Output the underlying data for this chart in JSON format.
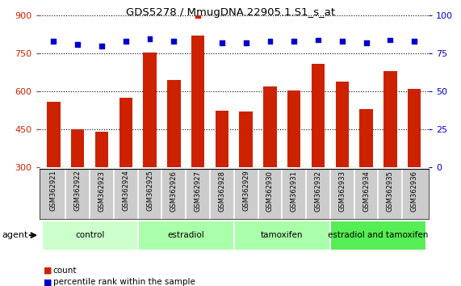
{
  "title": "GDS5278 / MmugDNA.22905.1.S1_s_at",
  "samples": [
    "GSM362921",
    "GSM362922",
    "GSM362923",
    "GSM362924",
    "GSM362925",
    "GSM362926",
    "GSM362927",
    "GSM362928",
    "GSM362929",
    "GSM362930",
    "GSM362931",
    "GSM362932",
    "GSM362933",
    "GSM362934",
    "GSM362935",
    "GSM362936"
  ],
  "counts": [
    560,
    450,
    440,
    575,
    755,
    645,
    820,
    525,
    520,
    620,
    605,
    710,
    640,
    530,
    680,
    610
  ],
  "percentiles": [
    83,
    81,
    80,
    83,
    85,
    83,
    100,
    82,
    82,
    83,
    83,
    84,
    83,
    82,
    84,
    83
  ],
  "bar_color": "#cc2200",
  "dot_color": "#0000cc",
  "dot_color_red": "#cc2200",
  "ylim_left": [
    300,
    900
  ],
  "ylim_right": [
    0,
    100
  ],
  "yticks_left": [
    300,
    450,
    600,
    750,
    900
  ],
  "yticks_right": [
    0,
    25,
    50,
    75,
    100
  ],
  "groups": [
    {
      "label": "control",
      "start": 0,
      "end": 4,
      "color": "#ccffcc"
    },
    {
      "label": "estradiol",
      "start": 4,
      "end": 8,
      "color": "#aaffaa"
    },
    {
      "label": "tamoxifen",
      "start": 8,
      "end": 12,
      "color": "#aaffaa"
    },
    {
      "label": "estradiol and tamoxifen",
      "start": 12,
      "end": 16,
      "color": "#55ee55"
    }
  ],
  "agent_label": "agent",
  "legend_count_label": "count",
  "legend_percentile_label": "percentile rank within the sample",
  "tick_color_left": "#cc2200",
  "tick_color_right": "#0000cc",
  "bar_bottom": 300,
  "xtick_bg_color": "#cccccc",
  "xtick_sep_color": "#ffffff"
}
